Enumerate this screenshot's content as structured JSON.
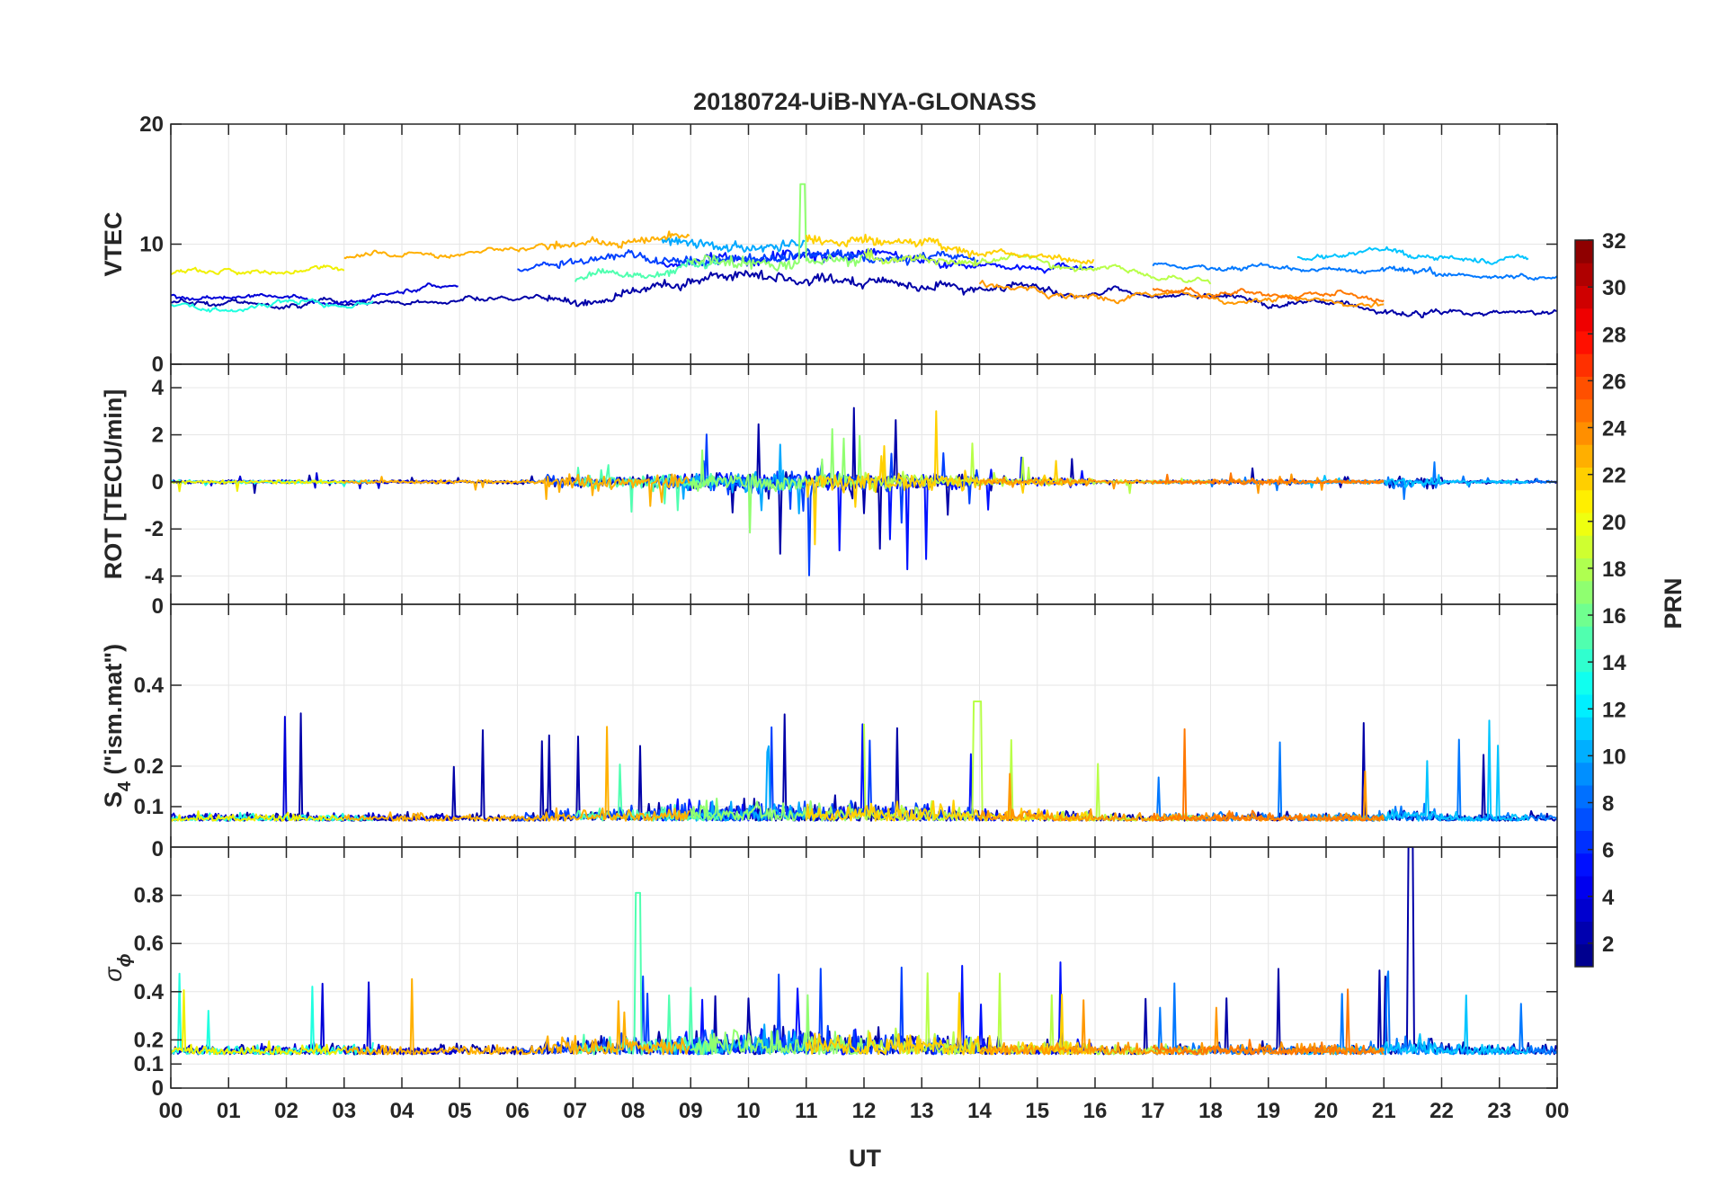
{
  "chart_data": {
    "type": "line",
    "title": "20180724-UiB-NYA-GLONASS",
    "xlabel": "UT",
    "x_ticks": [
      "00",
      "01",
      "02",
      "03",
      "04",
      "05",
      "06",
      "07",
      "08",
      "09",
      "10",
      "11",
      "12",
      "13",
      "14",
      "15",
      "16",
      "17",
      "18",
      "19",
      "20",
      "21",
      "22",
      "23",
      "00"
    ],
    "xlim_hours": [
      0,
      24
    ],
    "grid": true,
    "panels": [
      {
        "id": "vtec",
        "ylabel": "VTEC",
        "ylim": [
          0,
          20
        ],
        "yticks": [
          0,
          10,
          20
        ],
        "description_values": {
          "baseline_min": 4,
          "baseline_max": 11,
          "peak": 15,
          "peak_hour": 10.95
        }
      },
      {
        "id": "rot",
        "ylabel": "ROT [TECU/min]",
        "ylim": [
          -5.2,
          5
        ],
        "yticks": [
          -4,
          -2,
          0,
          2,
          4
        ],
        "description_values": {
          "max": 3.4,
          "min": -4.4,
          "active_hours": [
            7,
            14
          ]
        }
      },
      {
        "id": "s4",
        "ylabel": "S",
        "ylabel_subscript": "4",
        "ylabel_suffix": " (\"ism.mat\")",
        "ylim": [
          0,
          0.6
        ],
        "yticks": [
          0.1,
          0.2,
          0.4
        ],
        "top_tick_label": "0",
        "description_values": {
          "baseline": 0.06,
          "peak": 0.36,
          "peak_hour": 14.0
        }
      },
      {
        "id": "sigma_phi",
        "ylabel": "σ",
        "ylabel_subscript": "ϕ",
        "ylim": [
          0,
          1.0
        ],
        "yticks": [
          0,
          0.1,
          0.2,
          0.4,
          0.6,
          0.8
        ],
        "top_tick_label": "0",
        "description_values": {
          "baseline": 0.15,
          "peak": 1.0,
          "peak_hour": 21.45
        }
      }
    ],
    "colorbar": {
      "label": "PRN",
      "range": [
        1,
        32
      ],
      "ticks": [
        2,
        4,
        6,
        8,
        10,
        12,
        14,
        16,
        18,
        20,
        22,
        24,
        26,
        28,
        30,
        32
      ],
      "colormap": "jet"
    },
    "series": [
      {
        "prn": 2,
        "color": "#0000a8",
        "hours": [
          0,
          24
        ]
      },
      {
        "prn": 3,
        "color": "#0000d8",
        "hours": [
          0,
          5
        ]
      },
      {
        "prn": 4,
        "color": "#0010ff",
        "hours": [
          8.5,
          16
        ]
      },
      {
        "prn": 6,
        "color": "#0040ff",
        "hours": [
          6,
          14
        ]
      },
      {
        "prn": 8,
        "color": "#0078ff",
        "hours": [
          17,
          24
        ]
      },
      {
        "prn": 10,
        "color": "#00a8ff",
        "hours": [
          8.5,
          11
        ]
      },
      {
        "prn": 11,
        "color": "#00c4ff",
        "hours": [
          19.5,
          23.5
        ]
      },
      {
        "prn": 13,
        "color": "#20ffe0",
        "hours": [
          0,
          3.5
        ]
      },
      {
        "prn": 15,
        "color": "#50ffb0",
        "hours": [
          7,
          9.5
        ]
      },
      {
        "prn": 17,
        "color": "#90ff70",
        "hours": [
          9,
          12
        ]
      },
      {
        "prn": 18,
        "color": "#b8ff48",
        "hours": [
          12,
          18
        ]
      },
      {
        "prn": 20,
        "color": "#f0f000",
        "hours": [
          0,
          3
        ]
      },
      {
        "prn": 21,
        "color": "#ffd000",
        "hours": [
          11,
          16
        ]
      },
      {
        "prn": 22,
        "color": "#ffb000",
        "hours": [
          3,
          9
        ]
      },
      {
        "prn": 23,
        "color": "#ff9800",
        "hours": [
          14,
          21
        ]
      },
      {
        "prn": 24,
        "color": "#ff7800",
        "hours": [
          17,
          21
        ]
      }
    ]
  }
}
